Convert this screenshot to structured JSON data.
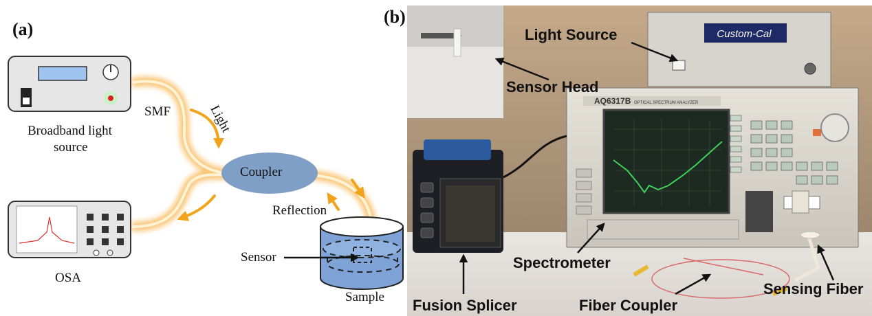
{
  "panel_a": {
    "label": "(a)",
    "broadband_label_line1": "Broadband light",
    "broadband_label_line2": "source",
    "smf_label": "SMF",
    "light_label": "Light",
    "coupler_label": "Coupler",
    "reflection_label": "Reflection",
    "sensor_label": "Sensor",
    "sample_label": "Sample",
    "osa_label": "OSA"
  },
  "panel_b": {
    "label": "(b)",
    "light_source_label": "Light Source",
    "sensor_head_label": "Sensor Head",
    "spectrometer_label": "Spectrometer",
    "fusion_splicer_label": "Fusion Splicer",
    "fiber_coupler_label": "Fiber Coupler",
    "sensing_fiber_label": "Sensing Fiber",
    "osa_brand": "AQ6317B",
    "osa_subtitle": "OPTICAL SPECTRUM ANALYZER",
    "light_source_brand": "Custom-Cal"
  },
  "colors": {
    "fiber_glow": "#f7b24a",
    "fiber_core": "#fff3d6",
    "coupler_fill": "#7f9fc7",
    "sample_fill": "#7fa3d6",
    "arrow_orange": "#f2a31b",
    "osa_screen": "#1d2a22",
    "trace_green": "#3fcf5a"
  }
}
